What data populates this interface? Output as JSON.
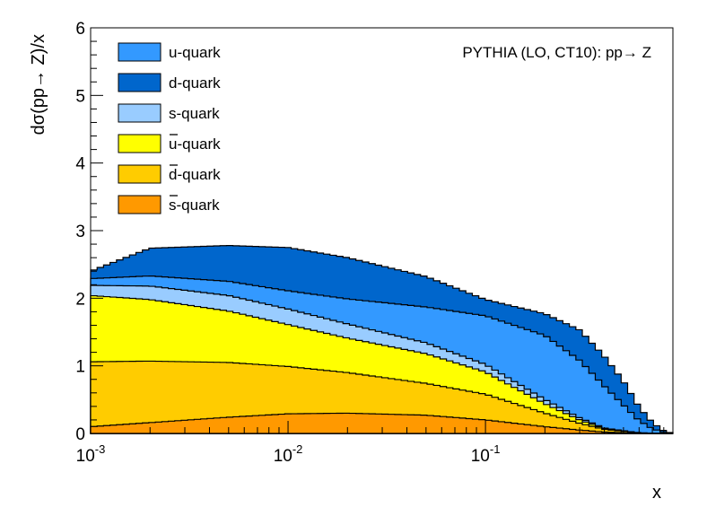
{
  "chart_data": {
    "type": "area",
    "stacked": true,
    "x_scale": "log",
    "xlim": [
      0.001,
      0.89
    ],
    "ylim": [
      0,
      6
    ],
    "xlabel": "x",
    "ylabel": "dσ(pp→ Z)/x",
    "annotation": "PYTHIA (LO, CT10): pp→ Z",
    "x_ticks": [
      {
        "value": 0.001,
        "base": "10",
        "exp": "-3"
      },
      {
        "value": 0.01,
        "base": "10",
        "exp": "-2"
      },
      {
        "value": 0.1,
        "base": "10",
        "exp": "-1"
      }
    ],
    "y_ticks": [
      {
        "value": 0,
        "label": "0"
      },
      {
        "value": 1,
        "label": "1"
      },
      {
        "value": 2,
        "label": "2"
      },
      {
        "value": 3,
        "label": "3"
      },
      {
        "value": 4,
        "label": "4"
      },
      {
        "value": 5,
        "label": "5"
      },
      {
        "value": 6,
        "label": "6"
      }
    ],
    "x": [
      0.001,
      0.002,
      0.005,
      0.01,
      0.02,
      0.05,
      0.1,
      0.2,
      0.3,
      0.4,
      0.5,
      0.6,
      0.7,
      0.8,
      0.89
    ],
    "series": [
      {
        "name": "s-quark",
        "bar": false,
        "color": "#ff9900",
        "values": [
          0.1,
          0.16,
          0.24,
          0.29,
          0.3,
          0.27,
          0.2,
          0.1,
          0.05,
          0.02,
          0.01,
          0.0,
          0.0,
          0.0,
          0.0
        ]
      },
      {
        "name": "d-quark",
        "bar": true,
        "color": "#ffcc00",
        "values": [
          0.96,
          0.91,
          0.81,
          0.7,
          0.6,
          0.47,
          0.38,
          0.2,
          0.1,
          0.04,
          0.02,
          0.01,
          0.0,
          0.0,
          0.0
        ]
      },
      {
        "name": "u-quark",
        "bar": true,
        "color": "#ffff00",
        "values": [
          0.98,
          0.91,
          0.76,
          0.62,
          0.51,
          0.44,
          0.33,
          0.14,
          0.05,
          0.01,
          0.01,
          0.0,
          0.0,
          0.0,
          0.0
        ]
      },
      {
        "name": "s-quark",
        "bar": false,
        "color": "#99ccff",
        "values": [
          0.15,
          0.2,
          0.23,
          0.23,
          0.21,
          0.16,
          0.11,
          0.06,
          0.03,
          0.01,
          0.0,
          0.0,
          0.0,
          0.0,
          0.0
        ]
      },
      {
        "name": "u-quark",
        "bar": false,
        "color": "#3399ff",
        "values": [
          0.1,
          0.15,
          0.21,
          0.27,
          0.37,
          0.53,
          0.72,
          0.95,
          0.85,
          0.62,
          0.38,
          0.18,
          0.07,
          0.02,
          0.0
        ]
      },
      {
        "name": "d-quark",
        "bar": false,
        "color": "#0066cc",
        "values": [
          0.11,
          0.41,
          0.53,
          0.64,
          0.61,
          0.45,
          0.24,
          0.32,
          0.45,
          0.44,
          0.35,
          0.2,
          0.09,
          0.02,
          0.0
        ]
      }
    ],
    "legend": [
      {
        "name": "u-quark",
        "bar": false,
        "color": "#3399ff"
      },
      {
        "name": "d-quark",
        "bar": false,
        "color": "#0066cc"
      },
      {
        "name": "s-quark",
        "bar": false,
        "color": "#99ccff"
      },
      {
        "name": "u-quark",
        "bar": true,
        "color": "#ffff00"
      },
      {
        "name": "d-quark",
        "bar": true,
        "color": "#ffcc00"
      },
      {
        "name": "s-quark",
        "bar": true,
        "color": "#ff9900"
      }
    ],
    "legend_position": "top-left",
    "grid": false
  }
}
